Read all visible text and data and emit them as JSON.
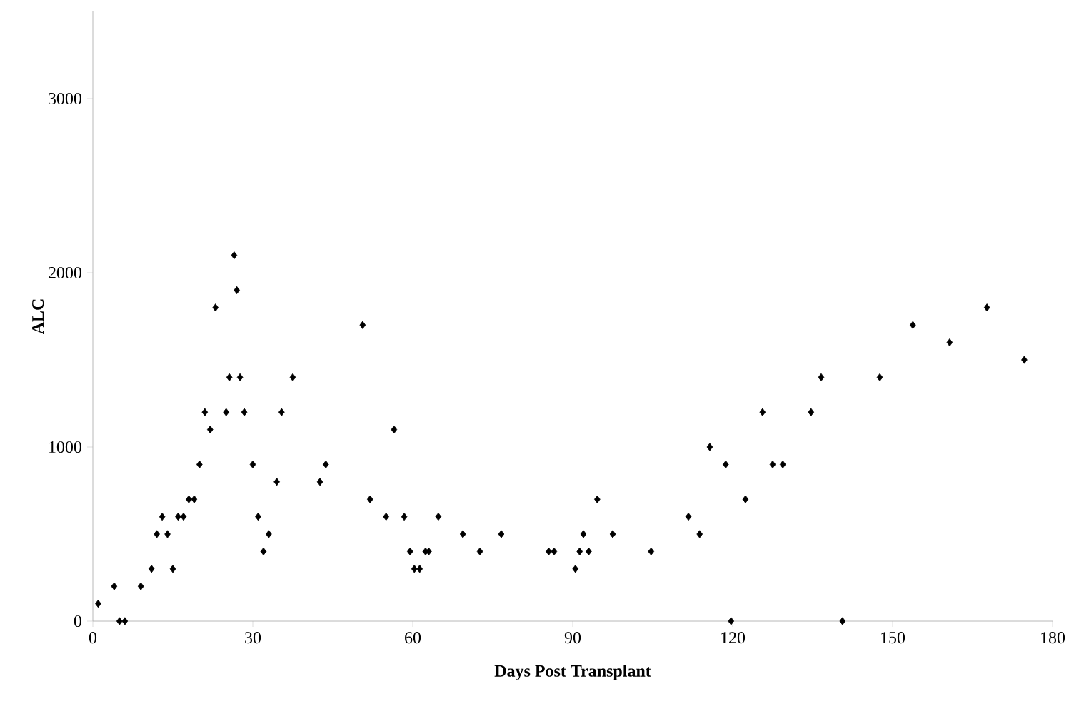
{
  "chart_data": {
    "type": "scatter",
    "xlabel": "Days Post Transplant",
    "ylabel": "ALC",
    "x": [
      1,
      4,
      5,
      6,
      9,
      11,
      12,
      13,
      14,
      15,
      16,
      17,
      18,
      19,
      20,
      21,
      22,
      23,
      25,
      25.6,
      26.5,
      27,
      27.6,
      28.4,
      30,
      31,
      32,
      33,
      34.5,
      35.4,
      37.5,
      42.6,
      43.7,
      50.6,
      52,
      55,
      56.5,
      58.4,
      59.5,
      60.3,
      61.3,
      62.4,
      63,
      64.8,
      69.4,
      72.6,
      76.6,
      85.5,
      86.5,
      90.5,
      91.3,
      92,
      93,
      94.6,
      97.5,
      104.7,
      111.7,
      113.8,
      115.7,
      118.7,
      119.7,
      122.4,
      125.6,
      127.5,
      129.4,
      134.7,
      136.6,
      140.6,
      147.6,
      153.8,
      160.7,
      167.7,
      174.7
    ],
    "values": [
      100,
      200,
      0,
      0,
      200,
      300,
      500,
      600,
      500,
      300,
      600,
      600,
      700,
      700,
      900,
      1200,
      1100,
      1800,
      1200,
      1400,
      2100,
      1900,
      1400,
      1200,
      900,
      600,
      400,
      500,
      800,
      1200,
      1400,
      800,
      900,
      1700,
      700,
      600,
      1100,
      600,
      400,
      300,
      300,
      400,
      400,
      600,
      500,
      400,
      500,
      400,
      400,
      300,
      400,
      500,
      400,
      700,
      500,
      400,
      600,
      500,
      1000,
      900,
      0,
      700,
      1200,
      900,
      900,
      1200,
      1400,
      0,
      1400,
      1700,
      1600,
      1800,
      1500
    ],
    "color": "#000000",
    "marker": "diamond",
    "xlim": [
      0,
      180
    ],
    "xticks": [
      0,
      30,
      60,
      90,
      120,
      150,
      180
    ],
    "ylim": [
      0,
      3500
    ],
    "yticks": [
      0,
      1000,
      2000,
      3000
    ]
  }
}
